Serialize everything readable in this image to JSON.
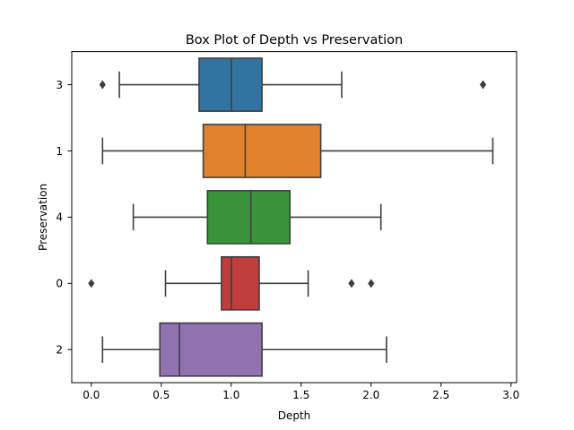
{
  "chart_data": {
    "type": "box",
    "orientation": "horizontal",
    "title": "Box Plot of Depth vs Preservation",
    "xlabel": "Depth",
    "ylabel": "Preservation",
    "xlim": [
      -0.14,
      3.04
    ],
    "xticks": [
      0.0,
      0.5,
      1.0,
      1.5,
      2.0,
      2.5,
      3.0
    ],
    "xtick_labels": [
      "0.0",
      "0.5",
      "1.0",
      "1.5",
      "2.0",
      "2.5",
      "3.0"
    ],
    "grid": false,
    "categories": [
      "3",
      "1",
      "4",
      "0",
      "2"
    ],
    "boxes": [
      {
        "category": "3",
        "color": "#3274a1",
        "whisker_low": 0.2,
        "q1": 0.77,
        "median": 1.0,
        "q3": 1.22,
        "whisker_high": 1.79,
        "outliers": [
          0.08,
          2.8
        ]
      },
      {
        "category": "1",
        "color": "#e1812c",
        "whisker_low": 0.08,
        "q1": 0.8,
        "median": 1.1,
        "q3": 1.64,
        "whisker_high": 2.87,
        "outliers": []
      },
      {
        "category": "4",
        "color": "#3a923a",
        "whisker_low": 0.3,
        "q1": 0.83,
        "median": 1.14,
        "q3": 1.42,
        "whisker_high": 2.07,
        "outliers": []
      },
      {
        "category": "0",
        "color": "#c03d3e",
        "whisker_low": 0.53,
        "q1": 0.93,
        "median": 1.0,
        "q3": 1.2,
        "whisker_high": 1.55,
        "outliers": [
          0.0,
          1.86,
          2.0
        ]
      },
      {
        "category": "2",
        "color": "#9372b2",
        "whisker_low": 0.08,
        "q1": 0.49,
        "median": 0.63,
        "q3": 1.22,
        "whisker_high": 2.11,
        "outliers": []
      }
    ]
  }
}
